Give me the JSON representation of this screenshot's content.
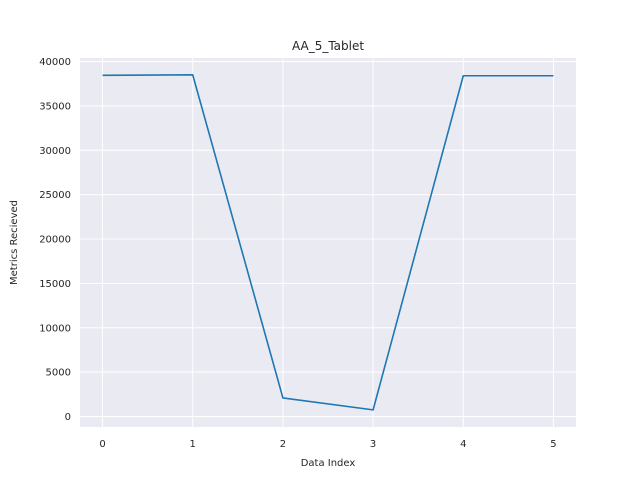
{
  "chart_data": {
    "type": "line",
    "title": "AA_5_Tablet",
    "xlabel": "Data Index",
    "ylabel": "Metrics Recieved",
    "x": [
      0,
      1,
      2,
      3,
      4,
      5
    ],
    "series": [
      {
        "values": [
          38450,
          38500,
          2100,
          750,
          38400,
          38400
        ],
        "color": "#1f77b4"
      }
    ],
    "xlim": [
      -0.25,
      5.25
    ],
    "ylim": [
      -1178,
      40400
    ],
    "xticks": [
      0,
      1,
      2,
      3,
      4,
      5
    ],
    "yticks": [
      0,
      5000,
      10000,
      15000,
      20000,
      25000,
      30000,
      35000,
      40000
    ],
    "grid": true,
    "style": {
      "plot_background": "#eaeaf2",
      "grid_color": "#ffffff"
    }
  }
}
